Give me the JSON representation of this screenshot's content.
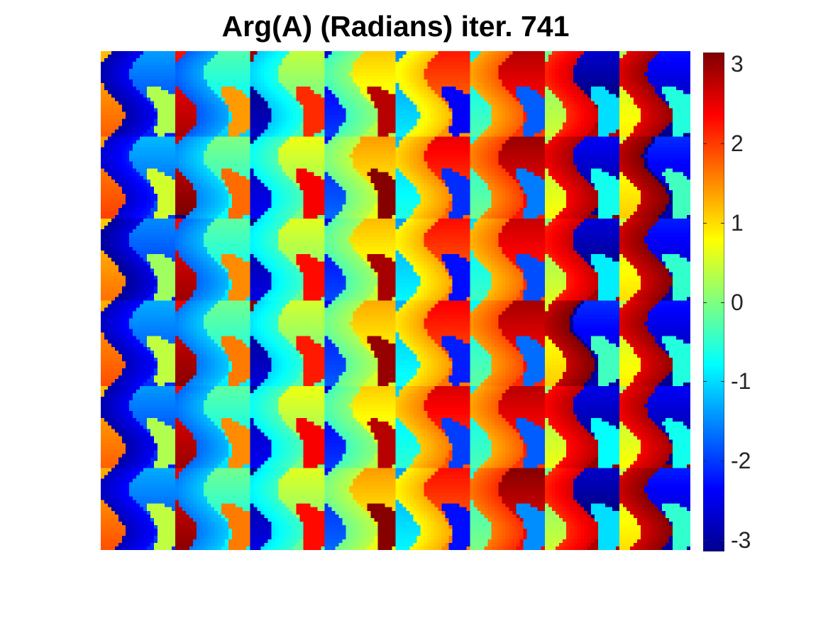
{
  "chart_data": {
    "type": "heatmap",
    "title": "Arg(A) (Radians) iter. 741",
    "xlabel": "",
    "ylabel": "",
    "colormap": "jet",
    "clim": [
      -3.1416,
      3.1416
    ],
    "colorbar": {
      "placement": "right",
      "ticks": [
        -3,
        -2,
        -1,
        0,
        1,
        2,
        3
      ],
      "tick_labels": [
        "-3",
        "-2",
        "-1",
        "0",
        "1",
        "2",
        "3"
      ]
    },
    "axes_visible": false,
    "grid": false,
    "pattern": {
      "description_free": true,
      "column_bands": 8,
      "row_repeats": 6,
      "band_base_phase": [
        -2.6,
        -1.5,
        -0.6,
        0.3,
        1.1,
        1.9,
        2.5,
        2.9
      ],
      "cell_values": [
        [
          -2.7,
          -1.6,
          -0.9,
          -0.2,
          0.9,
          1.5,
          2.3,
          2.7
        ],
        [
          -2.5,
          -1.3,
          -0.6,
          0.1,
          1.2,
          1.7,
          2.6,
          2.9
        ],
        [
          -2.8,
          -1.5,
          -0.7,
          -0.1,
          1.0,
          1.4,
          2.4,
          2.8
        ],
        [
          -2.6,
          -1.4,
          -0.8,
          0.0,
          1.1,
          1.6,
          2.9,
          2.7
        ],
        [
          -2.7,
          -1.5,
          -0.6,
          -0.2,
          1.3,
          1.5,
          2.5,
          2.6
        ],
        [
          -2.6,
          -1.4,
          -0.7,
          0.1,
          1.0,
          1.8,
          2.3,
          2.8
        ]
      ]
    }
  }
}
